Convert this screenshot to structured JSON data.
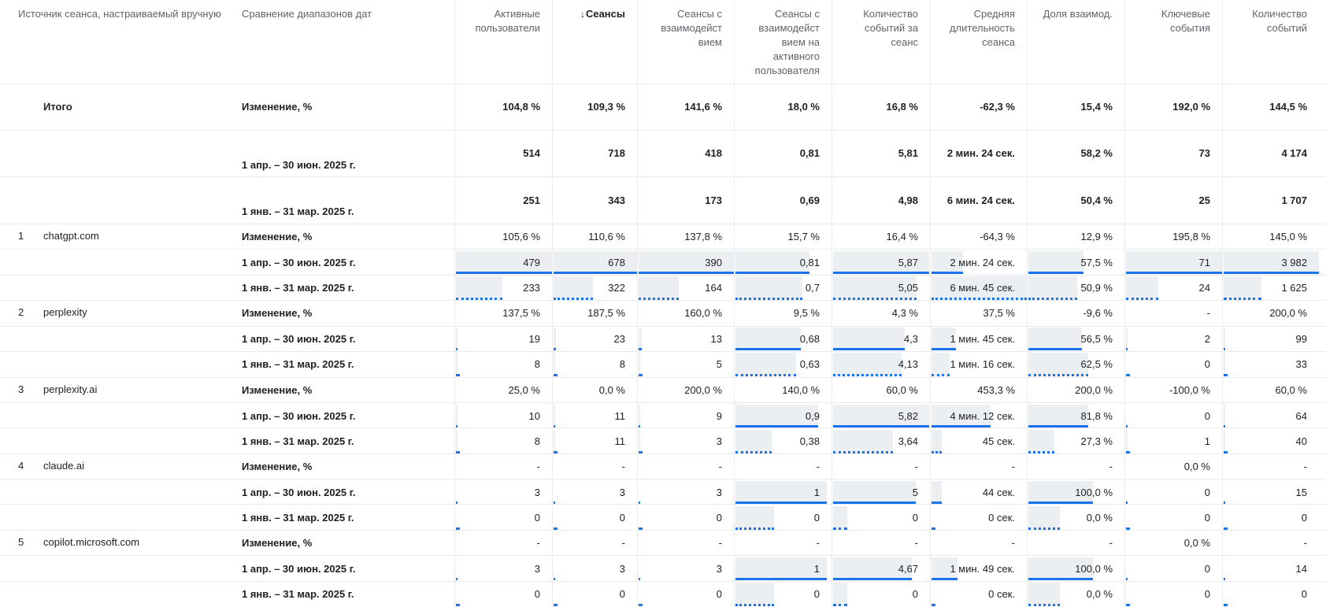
{
  "columns": {
    "source": "Источник сеанса, настраиваемый вручную",
    "compare": "Сравнение диапазонов дат",
    "metrics": [
      [
        "Активные",
        "пользователи"
      ],
      [
        "Сеансы"
      ],
      [
        "Сеансы с",
        "взаимодейст",
        "вием"
      ],
      [
        "Сеансы с",
        "взаимодейст",
        "вием на",
        "активного",
        "пользователя"
      ],
      [
        "Количество",
        "событий за",
        "сеанс"
      ],
      [
        "Средняя",
        "длительность",
        "сеанса"
      ],
      [
        "Доля взаимод."
      ],
      [
        "Ключевые",
        "события"
      ],
      [
        "Количество",
        "событий"
      ]
    ],
    "sorted_index": 1
  },
  "totals": {
    "label": "Итого",
    "rows": [
      {
        "label": "Изменение, %",
        "values": [
          "104,8 %",
          "109,3 %",
          "141,6 %",
          "18,0 %",
          "16,8 %",
          "-62,3 %",
          "15,4 %",
          "192,0 %",
          "144,5 %"
        ]
      },
      {
        "label": "1 апр. – 30 июн. 2025 г.",
        "values": [
          "514",
          "718",
          "418",
          "0,81",
          "5,81",
          "2 мин. 24 сек.",
          "58,2 %",
          "73",
          "4 174"
        ]
      },
      {
        "label": "1 янв. – 31 мар. 2025 г.",
        "values": [
          "251",
          "343",
          "173",
          "0,69",
          "4,98",
          "6 мин. 24 сек.",
          "50,4 %",
          "25",
          "1 707"
        ]
      }
    ]
  },
  "groups": [
    {
      "num": "1",
      "source": "chatgpt.com",
      "change": [
        "105,6 %",
        "110,6 %",
        "137,8 %",
        "15,7 %",
        "16,4 %",
        "-64,3 %",
        "12,9 %",
        "195,8 %",
        "145,0 %"
      ],
      "cur_label": "1 апр. – 30 июн. 2025 г.",
      "cur": [
        "479",
        "678",
        "390",
        "0,81",
        "5,87",
        "2 мин. 24 сек.",
        "57,5 %",
        "71",
        "3 982"
      ],
      "cur_fill": [
        1,
        1,
        1,
        0.77,
        0.99,
        0.33,
        0.57,
        1,
        1
      ],
      "prev_label": "1 янв. – 31 мар. 2025 г.",
      "prev": [
        "233",
        "322",
        "164",
        "0,7",
        "5,05",
        "6 мин. 45 сек.",
        "50,9 %",
        "24",
        "1 625"
      ],
      "prev_fill": [
        0.48,
        0.47,
        0.42,
        0.7,
        0.86,
        1,
        0.51,
        0.34,
        0.4
      ]
    },
    {
      "num": "2",
      "source": "perplexity",
      "change": [
        "137,5 %",
        "187,5 %",
        "160,0 %",
        "9,5 %",
        "4,3 %",
        "37,5 %",
        "-9,6 %",
        "-",
        "200,0 %"
      ],
      "cur_label": "1 апр. – 30 июн. 2025 г.",
      "cur": [
        "19",
        "23",
        "13",
        "0,68",
        "4,3",
        "1 мин. 45 сек.",
        "56,5 %",
        "2",
        "99"
      ],
      "cur_fill": [
        0.02,
        0.03,
        0.03,
        0.68,
        0.74,
        0.26,
        0.56,
        0.02,
        0.02
      ],
      "prev_label": "1 янв. – 31 мар. 2025 г.",
      "prev": [
        "8",
        "8",
        "5",
        "0,63",
        "4,13",
        "1 мин. 16 сек.",
        "62,5 %",
        "0",
        "33"
      ],
      "prev_fill": [
        0.01,
        0.01,
        0.01,
        0.63,
        0.71,
        0.19,
        0.62,
        0,
        0.01
      ]
    },
    {
      "num": "3",
      "source": "perplexity.ai",
      "change": [
        "25,0 %",
        "0,0 %",
        "200,0 %",
        "140,0 %",
        "60,0 %",
        "453,3 %",
        "200,0 %",
        "-100,0 %",
        "60,0 %"
      ],
      "cur_label": "1 апр. – 30 июн. 2025 г.",
      "cur": [
        "10",
        "11",
        "9",
        "0,9",
        "5,82",
        "4 мин. 12 сек.",
        "81,8 %",
        "0",
        "64"
      ],
      "cur_fill": [
        0.01,
        0.01,
        0.02,
        0.86,
        0.99,
        0.62,
        0.62,
        0,
        0.01
      ],
      "prev_label": "1 янв. – 31 мар. 2025 г.",
      "prev": [
        "8",
        "11",
        "3",
        "0,38",
        "3,64",
        "45 сек.",
        "27,3 %",
        "1",
        "40"
      ],
      "prev_fill": [
        0.01,
        0.01,
        0.01,
        0.38,
        0.62,
        0.11,
        0.27,
        0.01,
        0.01
      ]
    },
    {
      "num": "4",
      "source": "claude.ai",
      "change": [
        "-",
        "-",
        "-",
        "-",
        "-",
        "-",
        "-",
        "0,0 %",
        "-"
      ],
      "cur_label": "1 апр. – 30 июн. 2025 г.",
      "cur": [
        "3",
        "3",
        "3",
        "1",
        "5",
        "44 сек.",
        "100,0 %",
        "0",
        "15"
      ],
      "cur_fill": [
        0,
        0,
        0,
        0.95,
        0.85,
        0.11,
        0.67,
        0,
        0
      ],
      "prev_label": "1 янв. – 31 мар. 2025 г.",
      "prev": [
        "0",
        "0",
        "0",
        "0",
        "0",
        "0 сек.",
        "0,0 %",
        "0",
        "0"
      ],
      "prev_fill": [
        0,
        0,
        0,
        0.4,
        0.15,
        0,
        0.33,
        0,
        0
      ]
    },
    {
      "num": "5",
      "source": "copilot.microsoft.com",
      "change": [
        "-",
        "-",
        "-",
        "-",
        "-",
        "-",
        "-",
        "0,0 %",
        "-"
      ],
      "cur_label": "1 апр. – 30 июн. 2025 г.",
      "cur": [
        "3",
        "3",
        "3",
        "1",
        "4,67",
        "1 мин. 49 сек.",
        "100,0 %",
        "0",
        "14"
      ],
      "cur_fill": [
        0,
        0,
        0,
        0.95,
        0.81,
        0.27,
        0.67,
        0,
        0
      ],
      "prev_label": "1 янв. – 31 мар. 2025 г.",
      "prev": [
        "0",
        "0",
        "0",
        "0",
        "0",
        "0 сек.",
        "0,0 %",
        "0",
        "0"
      ],
      "prev_fill": [
        0,
        0,
        0,
        0.4,
        0.15,
        0,
        0.33,
        0,
        0
      ]
    }
  ],
  "colors": {
    "accent": "#1a73e8",
    "bar_fill": "#eceff1",
    "grid": "#e8eaed"
  }
}
